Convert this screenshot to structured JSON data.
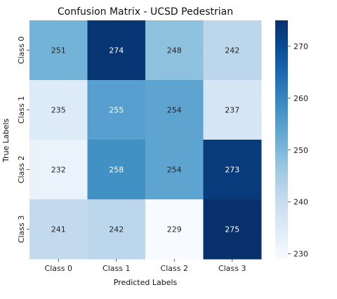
{
  "chart_data": {
    "type": "heatmap",
    "title": "Confusion Matrix - UCSD Pedestrian",
    "xlabel": "Predicted Labels",
    "ylabel": "True Labels",
    "x_categories": [
      "Class 0",
      "Class 1",
      "Class 2",
      "Class 3"
    ],
    "y_categories": [
      "Class 0",
      "Class 1",
      "Class 2",
      "Class 3"
    ],
    "values": [
      [
        251,
        274,
        248,
        242
      ],
      [
        235,
        255,
        254,
        237
      ],
      [
        232,
        258,
        254,
        273
      ],
      [
        241,
        242,
        229,
        275
      ]
    ],
    "colormap": "Blues",
    "colorbar": {
      "range": [
        229,
        275
      ],
      "ticks": [
        230,
        240,
        250,
        260,
        270
      ]
    }
  }
}
